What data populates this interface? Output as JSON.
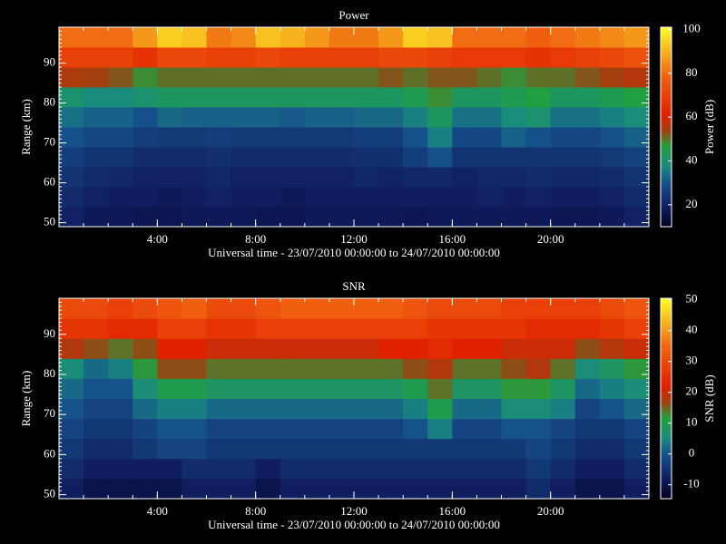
{
  "chart_data": [
    {
      "type": "heatmap",
      "title": "Power",
      "xlabel": "Universal time - 23/07/2010 00:00:00 to 24/07/2010 00:00:00",
      "ylabel": "Range (km)",
      "colorbar_label": "Power (dB)",
      "xlim": [
        0,
        24
      ],
      "ylim": [
        49,
        99
      ],
      "xticks": [
        {
          "value": 4,
          "label": "4:00"
        },
        {
          "value": 8,
          "label": "8:00"
        },
        {
          "value": 12,
          "label": "12:00"
        },
        {
          "value": 16,
          "label": "16:00"
        },
        {
          "value": 20,
          "label": "20:00"
        }
      ],
      "yticks": [
        50,
        60,
        70,
        80,
        90
      ],
      "clim": [
        10,
        101
      ],
      "cticks": [
        20,
        40,
        60,
        80,
        100
      ],
      "colorscale": [
        [
          0,
          "#000020"
        ],
        [
          0.1,
          "#101e60"
        ],
        [
          0.22,
          "#16508a"
        ],
        [
          0.3,
          "#1a8a80"
        ],
        [
          0.4,
          "#20a040"
        ],
        [
          0.48,
          "#a04010"
        ],
        [
          0.56,
          "#e02000"
        ],
        [
          0.75,
          "#f06010"
        ],
        [
          0.9,
          "#f8c020"
        ],
        [
          1,
          "#ffff20"
        ]
      ],
      "x_edges": [
        0,
        1,
        2,
        3,
        4,
        5,
        6,
        7,
        8,
        9,
        10,
        11,
        12,
        13,
        14,
        15,
        16,
        17,
        18,
        19,
        20,
        21,
        22,
        23,
        24
      ],
      "y_edges": [
        49,
        54,
        59,
        64,
        69,
        74,
        79,
        84,
        89,
        94,
        99
      ],
      "z": [
        [
          20,
          18,
          18,
          17,
          17,
          18,
          18,
          18,
          17,
          17,
          18,
          18,
          18,
          18,
          17,
          18,
          18,
          18,
          18,
          18,
          17,
          17,
          18,
          20
        ],
        [
          22,
          20,
          19,
          19,
          18,
          19,
          20,
          19,
          19,
          18,
          19,
          19,
          19,
          19,
          19,
          19,
          19,
          20,
          19,
          20,
          19,
          19,
          20,
          22
        ],
        [
          24,
          22,
          21,
          20,
          20,
          20,
          21,
          20,
          20,
          20,
          20,
          20,
          21,
          20,
          21,
          21,
          20,
          21,
          21,
          22,
          21,
          21,
          22,
          24
        ],
        [
          26,
          24,
          24,
          22,
          22,
          22,
          23,
          22,
          22,
          22,
          22,
          22,
          23,
          23,
          26,
          30,
          24,
          24,
          24,
          24,
          24,
          24,
          25,
          27
        ],
        [
          30,
          28,
          28,
          26,
          25,
          25,
          26,
          25,
          25,
          25,
          25,
          25,
          26,
          26,
          30,
          36,
          28,
          28,
          32,
          30,
          28,
          28,
          30,
          32
        ],
        [
          34,
          32,
          32,
          30,
          33,
          32,
          32,
          32,
          32,
          31,
          32,
          32,
          33,
          33,
          36,
          42,
          34,
          34,
          38,
          40,
          34,
          34,
          36,
          38
        ],
        [
          40,
          38,
          38,
          40,
          42,
          42,
          42,
          42,
          42,
          42,
          42,
          42,
          42,
          42,
          44,
          48,
          42,
          42,
          44,
          46,
          42,
          42,
          44,
          46
        ],
        [
          55,
          54,
          52,
          48,
          50,
          50,
          50,
          50,
          50,
          50,
          50,
          50,
          50,
          52,
          50,
          52,
          52,
          50,
          48,
          50,
          50,
          52,
          54,
          56
        ],
        [
          70,
          70,
          70,
          66,
          72,
          72,
          70,
          70,
          72,
          70,
          70,
          70,
          70,
          72,
          72,
          70,
          68,
          68,
          68,
          66,
          68,
          70,
          72,
          74
        ],
        [
          80,
          80,
          80,
          86,
          94,
          92,
          82,
          84,
          92,
          90,
          86,
          82,
          82,
          86,
          94,
          92,
          80,
          80,
          80,
          78,
          80,
          82,
          84,
          86
        ]
      ]
    },
    {
      "type": "heatmap",
      "title": "SNR",
      "xlabel": "Universal time - 23/07/2010 00:00:00 to 24/07/2010 00:00:00",
      "ylabel": "Range (km)",
      "colorbar_label": "SNR (dB)",
      "xlim": [
        0,
        24
      ],
      "ylim": [
        49,
        99
      ],
      "xticks": [
        {
          "value": 4,
          "label": "4:00"
        },
        {
          "value": 8,
          "label": "8:00"
        },
        {
          "value": 12,
          "label": "12:00"
        },
        {
          "value": 16,
          "label": "16:00"
        },
        {
          "value": 20,
          "label": "20:00"
        }
      ],
      "yticks": [
        50,
        60,
        70,
        80,
        90
      ],
      "clim": [
        -14.5,
        50.5
      ],
      "cticks": [
        -10,
        0,
        10,
        20,
        30,
        40,
        50
      ],
      "colorscale": [
        [
          0,
          "#000020"
        ],
        [
          0.1,
          "#101e60"
        ],
        [
          0.22,
          "#16508a"
        ],
        [
          0.3,
          "#1a8a80"
        ],
        [
          0.4,
          "#20a040"
        ],
        [
          0.48,
          "#a04010"
        ],
        [
          0.56,
          "#e02000"
        ],
        [
          0.75,
          "#f06010"
        ],
        [
          0.9,
          "#f8c020"
        ],
        [
          1,
          "#ffff20"
        ]
      ],
      "x_edges": [
        0,
        1,
        2,
        3,
        4,
        5,
        6,
        7,
        8,
        9,
        10,
        11,
        12,
        13,
        14,
        15,
        16,
        17,
        18,
        19,
        20,
        21,
        22,
        23,
        24
      ],
      "y_edges": [
        49,
        54,
        59,
        64,
        69,
        74,
        79,
        84,
        89,
        94,
        99
      ],
      "z": [
        [
          -8,
          -10,
          -10,
          -10,
          -10,
          -8,
          -8,
          -8,
          -10,
          -8,
          -8,
          -8,
          -8,
          -8,
          -8,
          -8,
          -8,
          -8,
          -8,
          -6,
          -8,
          -10,
          -10,
          -8
        ],
        [
          -6,
          -8,
          -8,
          -8,
          -8,
          -6,
          -6,
          -6,
          -8,
          -6,
          -6,
          -6,
          -6,
          -6,
          -6,
          -6,
          -6,
          -6,
          -6,
          -4,
          -6,
          -8,
          -8,
          -6
        ],
        [
          -4,
          -6,
          -6,
          -4,
          -2,
          -2,
          -4,
          -4,
          -4,
          -4,
          -4,
          -4,
          -4,
          -4,
          -4,
          -4,
          -4,
          -4,
          -4,
          -2,
          -4,
          -6,
          -6,
          -4
        ],
        [
          -2,
          -4,
          -4,
          -2,
          0,
          0,
          -2,
          -2,
          -2,
          -2,
          -2,
          -2,
          -2,
          -2,
          0,
          4,
          -2,
          -2,
          0,
          0,
          -2,
          -4,
          -4,
          -2
        ],
        [
          0,
          -2,
          -2,
          2,
          4,
          4,
          2,
          2,
          2,
          2,
          2,
          2,
          2,
          2,
          4,
          10,
          2,
          2,
          6,
          6,
          4,
          -2,
          0,
          2
        ],
        [
          2,
          0,
          0,
          6,
          10,
          10,
          8,
          8,
          8,
          8,
          8,
          8,
          8,
          8,
          10,
          14,
          8,
          8,
          12,
          12,
          8,
          2,
          4,
          6
        ],
        [
          6,
          2,
          4,
          12,
          16,
          16,
          14,
          14,
          14,
          14,
          14,
          14,
          14,
          14,
          16,
          18,
          14,
          14,
          16,
          18,
          14,
          6,
          8,
          12
        ],
        [
          18,
          16,
          14,
          16,
          22,
          22,
          20,
          20,
          20,
          20,
          20,
          20,
          20,
          22,
          22,
          24,
          22,
          22,
          20,
          20,
          20,
          16,
          18,
          20
        ],
        [
          26,
          26,
          24,
          24,
          28,
          28,
          26,
          26,
          28,
          28,
          28,
          28,
          28,
          28,
          28,
          26,
          26,
          26,
          26,
          24,
          24,
          24,
          26,
          28
        ],
        [
          30,
          30,
          28,
          30,
          32,
          34,
          30,
          30,
          32,
          34,
          34,
          34,
          34,
          34,
          32,
          30,
          30,
          30,
          28,
          28,
          28,
          28,
          30,
          32
        ]
      ]
    }
  ]
}
